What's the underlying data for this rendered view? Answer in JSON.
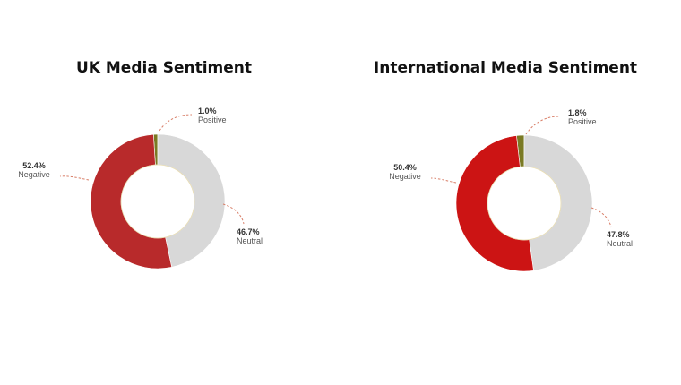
{
  "chart_data": [
    {
      "type": "pie",
      "title": "UK Media Sentiment",
      "categories": [
        "Positive",
        "Neutral",
        "Negative"
      ],
      "values": [
        1.0,
        46.7,
        52.4
      ],
      "labels": [
        "1.0%",
        "46.7%",
        "52.4%"
      ],
      "colors": [
        "#7a7a24",
        "#d8d8d8",
        "#b82a2b"
      ]
    },
    {
      "type": "pie",
      "title": "International Media Sentiment",
      "categories": [
        "Positive",
        "Neutral",
        "Negative"
      ],
      "values": [
        1.8,
        47.8,
        50.4
      ],
      "labels": [
        "1.8%",
        "47.8%",
        "50.4%"
      ],
      "colors": [
        "#7a7a24",
        "#d8d8d8",
        "#cc1414"
      ]
    }
  ]
}
